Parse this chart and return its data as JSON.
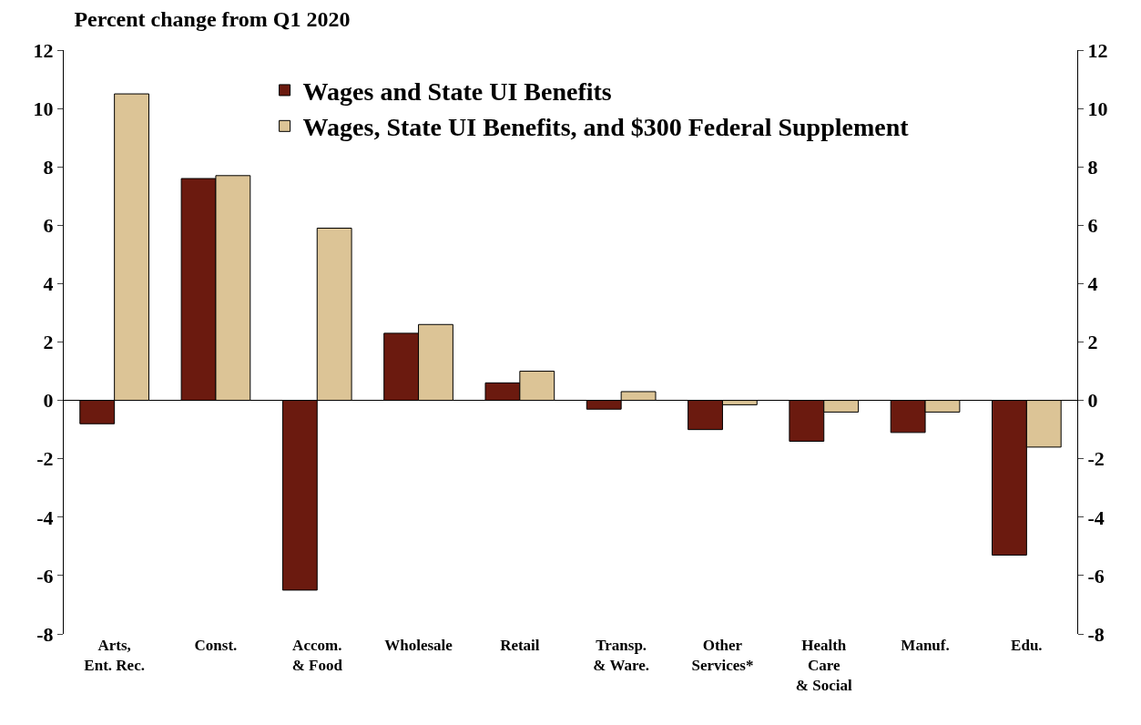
{
  "chart_data": {
    "type": "bar",
    "title": "Percent change from Q1 2020",
    "categories": [
      "Arts,\nEnt. Rec.",
      "Const.",
      "Accom.\n& Food",
      "Wholesale",
      "Retail",
      "Transp.\n& Ware.",
      "Other\nServices*",
      "Health\nCare\n& Social",
      "Manuf.",
      "Edu."
    ],
    "series": [
      {
        "name": "Wages and State UI Benefits",
        "color": "#6b1a0f",
        "values": [
          -0.8,
          7.6,
          -6.5,
          2.3,
          0.6,
          -0.3,
          -1.0,
          -1.4,
          -1.1,
          -5.3
        ]
      },
      {
        "name": "Wages, State UI Benefits, and $300 Federal Supplement",
        "color": "#dcc496",
        "values": [
          10.5,
          7.7,
          5.9,
          2.6,
          1.0,
          0.3,
          -0.15,
          -0.4,
          -0.4,
          -1.6
        ]
      }
    ],
    "ylim": [
      -8,
      12
    ],
    "yticks": [
      -8,
      -6,
      -4,
      -2,
      0,
      2,
      4,
      6,
      8,
      10,
      12
    ],
    "y2lim": [
      -8,
      12
    ],
    "y2ticks": [
      -8,
      -6,
      -4,
      -2,
      0,
      2,
      4,
      6,
      8,
      10,
      12
    ],
    "legend": "top"
  }
}
